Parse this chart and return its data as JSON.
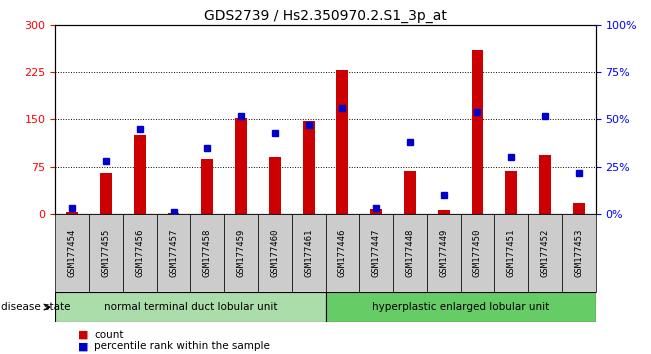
{
  "title": "GDS2739 / Hs2.350970.2.S1_3p_at",
  "samples": [
    "GSM177454",
    "GSM177455",
    "GSM177456",
    "GSM177457",
    "GSM177458",
    "GSM177459",
    "GSM177460",
    "GSM177461",
    "GSM177446",
    "GSM177447",
    "GSM177448",
    "GSM177449",
    "GSM177450",
    "GSM177451",
    "GSM177452",
    "GSM177453"
  ],
  "counts": [
    3,
    65,
    125,
    2,
    88,
    152,
    90,
    148,
    228,
    8,
    68,
    6,
    260,
    68,
    93,
    18
  ],
  "percentiles": [
    3,
    28,
    45,
    1,
    35,
    52,
    43,
    47,
    56,
    3,
    38,
    10,
    54,
    30,
    52,
    22
  ],
  "group1_label": "normal terminal duct lobular unit",
  "group2_label": "hyperplastic enlarged lobular unit",
  "group1_count": 8,
  "group2_count": 8,
  "bar_color": "#cc0000",
  "dot_color": "#0000cc",
  "group1_bg": "#aaddaa",
  "group2_bg": "#66cc66",
  "xlabels_bg": "#cccccc",
  "ylim_left": [
    0,
    300
  ],
  "ylim_right": [
    0,
    100
  ],
  "yticks_left": [
    0,
    75,
    150,
    225,
    300
  ],
  "yticks_right": [
    0,
    25,
    50,
    75,
    100
  ],
  "ytick_labels_left": [
    "0",
    "75",
    "150",
    "225",
    "300"
  ],
  "ytick_labels_right": [
    "0%",
    "25%",
    "50%",
    "75%",
    "100%"
  ],
  "legend_count_label": "count",
  "legend_pct_label": "percentile rank within the sample",
  "disease_state_label": "disease state",
  "title_fontsize": 10,
  "axis_fontsize": 8,
  "label_fontsize": 7.5,
  "tick_label_fontsize": 6.5
}
